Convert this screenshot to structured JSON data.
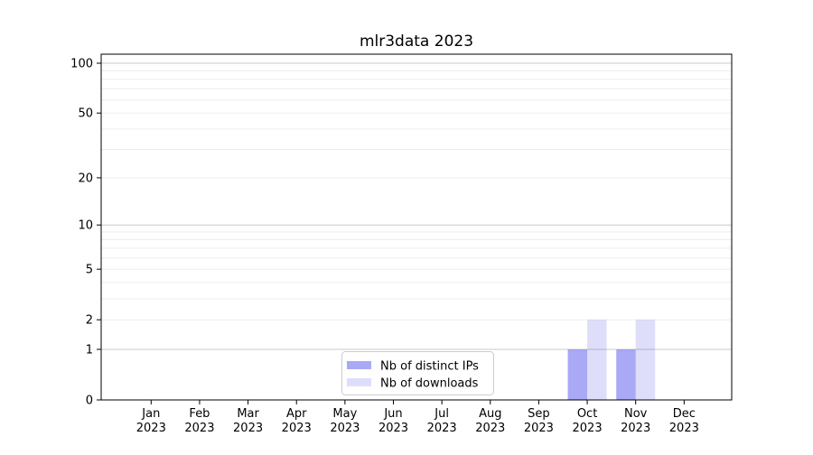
{
  "window": {
    "background_color": "#ffffff"
  },
  "chart_data": {
    "type": "bar",
    "title": "mlr3data 2023",
    "xlabel": "",
    "ylabel": "",
    "categories": [
      "Jan",
      "Feb",
      "Mar",
      "Apr",
      "May",
      "Jun",
      "Jul",
      "Aug",
      "Sep",
      "Oct",
      "Nov",
      "Dec"
    ],
    "category_sublabel": "2023",
    "series": [
      {
        "name": "Nb of distinct IPs",
        "color": "#6363ee",
        "alpha": 0.55,
        "solid_color_as_seen": "#a9a9f5",
        "values": [
          0,
          0,
          0,
          0,
          0,
          0,
          0,
          0,
          0,
          1,
          1,
          0
        ]
      },
      {
        "name": "Nb of downloads",
        "color": "#6363ee",
        "alpha": 0.21,
        "solid_color_as_seen": "#dedefb",
        "values": [
          0,
          0,
          0,
          0,
          0,
          0,
          0,
          0,
          0,
          2,
          2,
          0
        ]
      }
    ],
    "y_scale": "log1p",
    "y_ticks": [
      0,
      1,
      2,
      5,
      10,
      20,
      50,
      100
    ],
    "ylim": [
      0,
      115
    ],
    "grid": true,
    "major_gridlines": [
      1,
      10,
      100
    ],
    "minor_gridlines": [
      2,
      3,
      4,
      5,
      6,
      7,
      8,
      9,
      20,
      30,
      40,
      50,
      60,
      70,
      80,
      90
    ],
    "major_grid_color": "#c9c9c9",
    "minor_grid_color": "#ededed",
    "axis_color": "#000000",
    "legend_position": "lower center",
    "legend_border_color": "#cccccc"
  }
}
